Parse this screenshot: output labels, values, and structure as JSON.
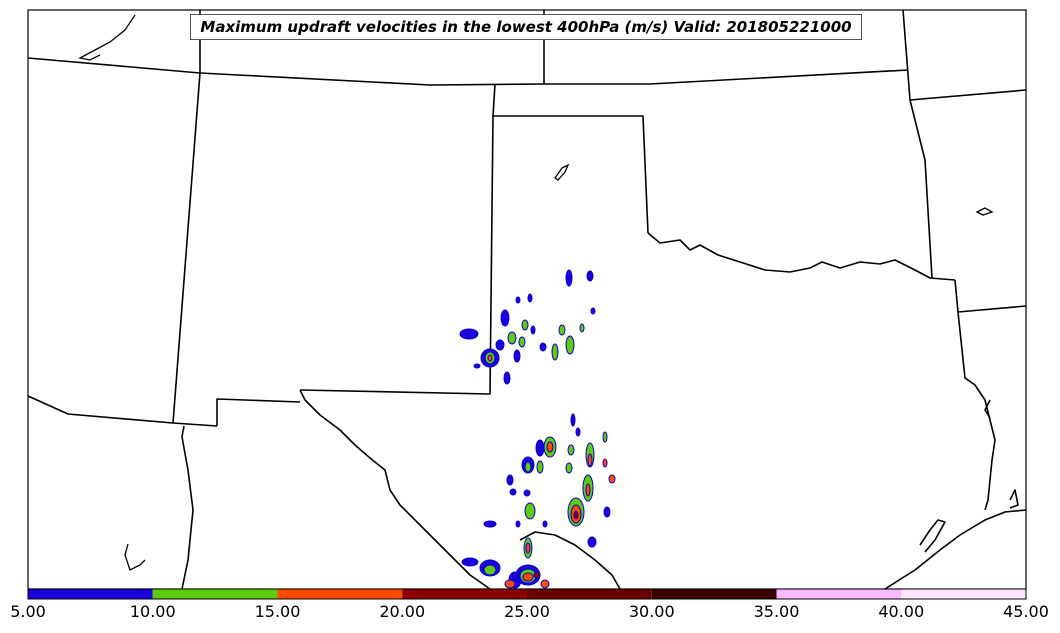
{
  "title": "Maximum updraft velocities in the lowest 400hPa (m/s) Valid: 201805221000",
  "colorbar": {
    "ticks": [
      "5.00",
      "10.00",
      "15.00",
      "20.00",
      "25.00",
      "30.00",
      "35.00",
      "40.00",
      "45.00"
    ],
    "levels": [
      5,
      10,
      15,
      20,
      25,
      30,
      35,
      40,
      45
    ],
    "colors": [
      "#1a00dd",
      "#5ecb0e",
      "#ff4a00",
      "#8b0000",
      "#6a0000",
      "#3a0000",
      "#fdb8ff",
      "#ffe4ff"
    ]
  },
  "contour_colors": {
    "outline": "#0a00c8",
    "level_1": "#1a00dd",
    "level_2": "#5ecb0e",
    "level_3": "#ff4a00",
    "level_4": "#8b0000"
  }
}
